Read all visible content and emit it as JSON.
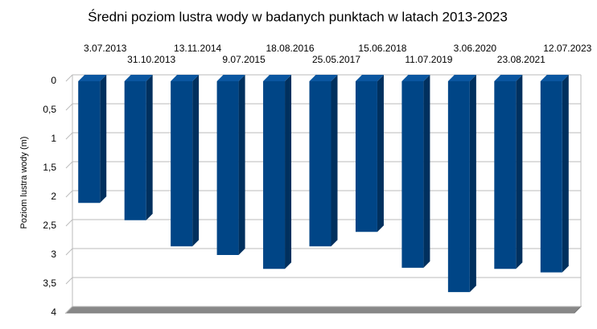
{
  "chart_data": {
    "type": "bar3d",
    "title": "Średni poziom lustra wody w badanych punktach w latach 2013-2023",
    "ylabel": "Poziom lustra wody (m)",
    "categories": [
      "3.07.2013",
      "31.10.2013",
      "13.11.2014",
      "9.07.2015",
      "18.08.2016",
      "25.05.2017",
      "15.06.2018",
      "11.07.2019",
      "3.06.2020",
      "23.08.2021",
      "12.07.2023"
    ],
    "values": [
      2.1,
      2.4,
      2.85,
      3.0,
      3.24,
      2.85,
      2.6,
      3.22,
      3.64,
      3.24,
      3.3
    ],
    "color": "#004586",
    "ylim": [
      0,
      4
    ],
    "y_reversed": true,
    "yticks": [
      0,
      {
        "value": 0.5,
        "label": "0,5"
      },
      1,
      {
        "value": 1.5,
        "label": "1,5"
      },
      2,
      {
        "value": 2.5,
        "label": "2,5"
      },
      3,
      {
        "value": 3.5,
        "label": "3,5"
      },
      4
    ],
    "grid": true
  }
}
